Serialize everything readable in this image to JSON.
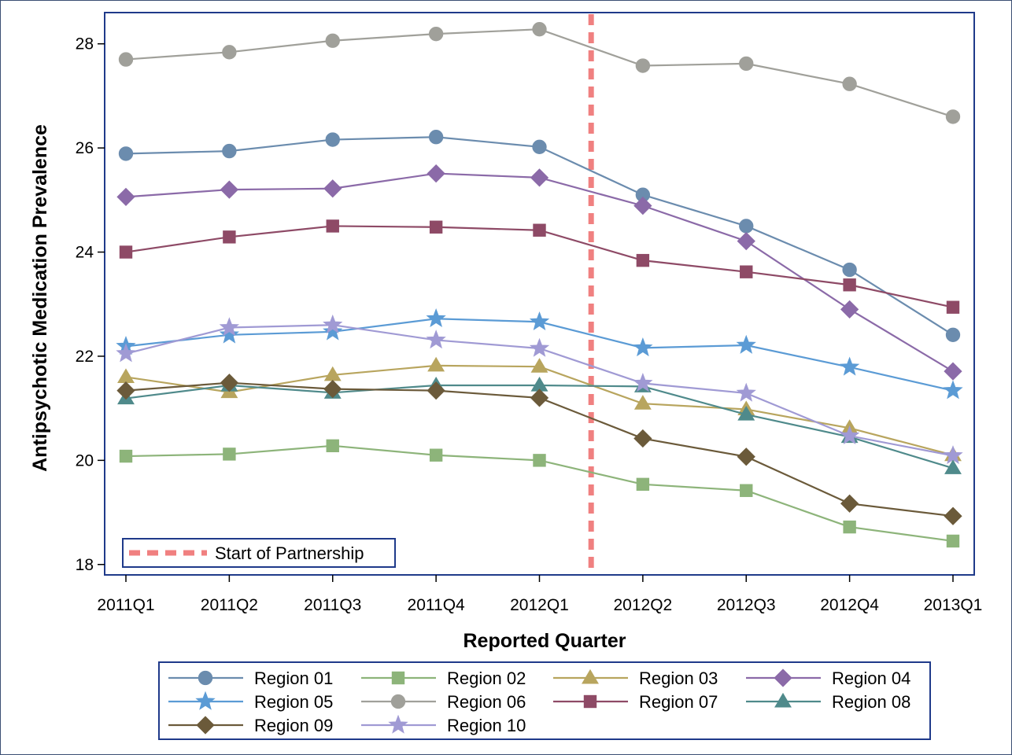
{
  "chart_data": {
    "type": "line",
    "title": "",
    "xlabel": "Reported Quarter",
    "ylabel": "Antipsychotic Medication Prevalence",
    "categories": [
      "2011Q1",
      "2011Q2",
      "2011Q3",
      "2011Q4",
      "2012Q1",
      "2012Q2",
      "2012Q3",
      "2012Q4",
      "2013Q1"
    ],
    "ylim": [
      17.8,
      28.6
    ],
    "yticks": [
      18,
      20,
      22,
      24,
      26,
      28
    ],
    "grid": false,
    "reference_line": {
      "label": "Start of Partnership",
      "x_between": [
        "2012Q1",
        "2012Q2"
      ],
      "color": "#f08080",
      "style": "dashed"
    },
    "legend": {
      "placement": "bottom",
      "columns": 4
    },
    "series": [
      {
        "name": "Region 01",
        "marker": "circle",
        "color": "#6b8cae",
        "values": [
          25.89,
          25.94,
          26.16,
          26.21,
          26.02,
          25.1,
          24.5,
          23.66,
          22.41
        ]
      },
      {
        "name": "Region 02",
        "marker": "square",
        "color": "#8db47a",
        "values": [
          20.08,
          20.12,
          20.28,
          20.1,
          20.0,
          19.54,
          19.42,
          18.72,
          18.45
        ]
      },
      {
        "name": "Region 03",
        "marker": "triangle",
        "color": "#b8a55e",
        "values": [
          21.6,
          21.31,
          21.64,
          21.82,
          21.8,
          21.09,
          20.98,
          20.62,
          20.1
        ]
      },
      {
        "name": "Region 04",
        "marker": "diamond",
        "color": "#8b6aa8",
        "values": [
          25.06,
          25.2,
          25.22,
          25.51,
          25.43,
          24.89,
          24.21,
          22.9,
          21.71
        ]
      },
      {
        "name": "Region 05",
        "marker": "star",
        "color": "#5b9bd5",
        "values": [
          22.19,
          22.41,
          22.47,
          22.72,
          22.66,
          22.16,
          22.21,
          21.79,
          21.34
        ]
      },
      {
        "name": "Region 06",
        "marker": "circle",
        "color": "#a0a09a",
        "values": [
          27.7,
          27.84,
          28.06,
          28.19,
          28.28,
          27.58,
          27.62,
          27.23,
          26.6
        ]
      },
      {
        "name": "Region 07",
        "marker": "square",
        "color": "#8e4a66",
        "values": [
          24.0,
          24.29,
          24.5,
          24.48,
          24.42,
          23.84,
          23.62,
          23.37,
          22.94
        ]
      },
      {
        "name": "Region 08",
        "marker": "triangle",
        "color": "#4f8a8b",
        "values": [
          21.19,
          21.44,
          21.3,
          21.44,
          21.44,
          21.42,
          20.88,
          20.45,
          19.85
        ]
      },
      {
        "name": "Region 09",
        "marker": "diamond",
        "color": "#6b5a3a",
        "values": [
          21.34,
          21.49,
          21.37,
          21.34,
          21.2,
          20.42,
          20.07,
          19.17,
          18.93
        ]
      },
      {
        "name": "Region 10",
        "marker": "star",
        "color": "#a09ad4",
        "values": [
          22.05,
          22.55,
          22.6,
          22.31,
          22.15,
          21.48,
          21.29,
          20.47,
          20.09
        ]
      }
    ]
  }
}
